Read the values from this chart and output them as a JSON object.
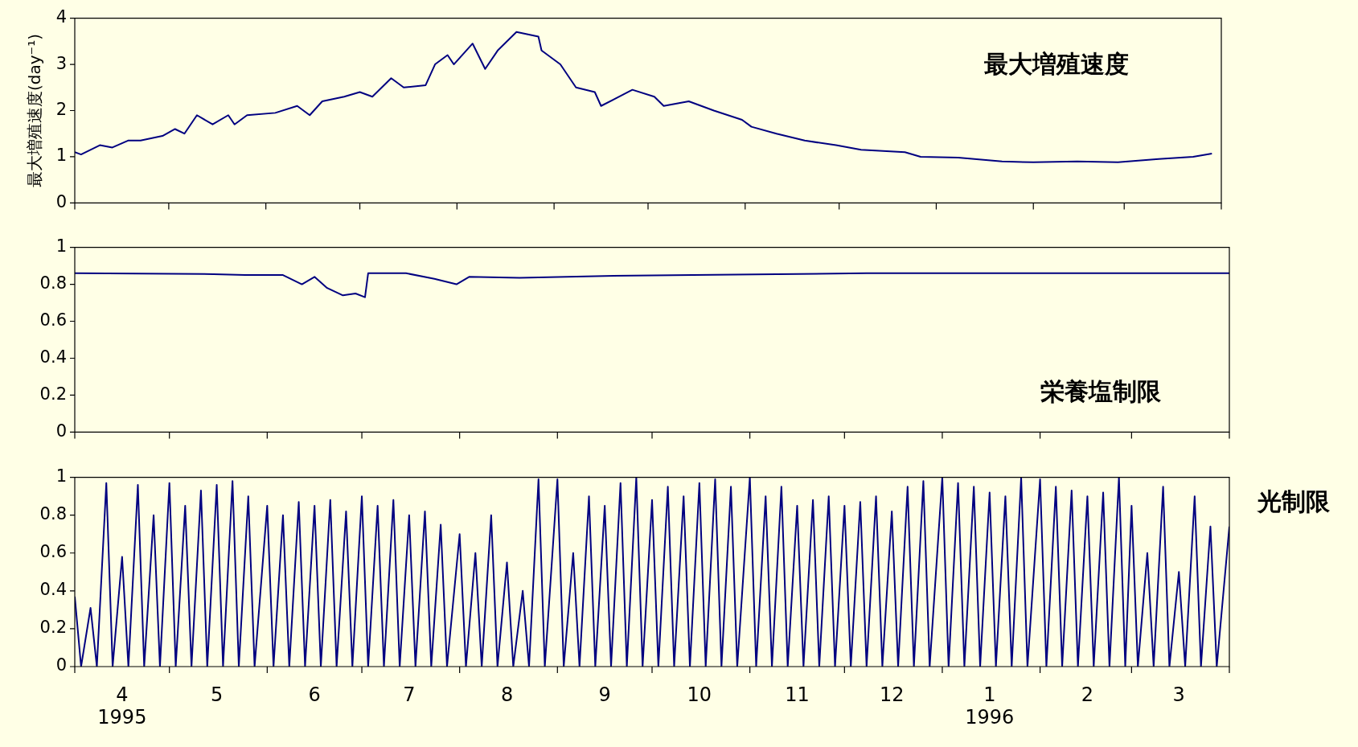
{
  "chart_data": [
    {
      "type": "line",
      "ylabel": "最大増殖速度(day⁻¹)",
      "annotations": [
        "最大増殖速度"
      ],
      "marker": "none",
      "legend": false,
      "tick_labels": "y",
      "xlim": [
        "1995-04-01",
        "1996-04-01"
      ],
      "ylim": [
        0,
        4
      ],
      "yticks": [
        0,
        1,
        2,
        3,
        4
      ],
      "xticks": [
        {
          "value": "1995-04-01",
          "label": null
        },
        {
          "value": "1995-05-01",
          "label": null
        },
        {
          "value": "1995-06-01",
          "label": null
        },
        {
          "value": "1995-07-01",
          "label": null
        },
        {
          "value": "1995-08-01",
          "label": null
        },
        {
          "value": "1995-09-01",
          "label": null
        },
        {
          "value": "1995-10-01",
          "label": null
        },
        {
          "value": "1995-11-01",
          "label": null
        },
        {
          "value": "1995-12-01",
          "label": null
        },
        {
          "value": "1996-01-01",
          "label": null
        },
        {
          "value": "1996-02-01",
          "label": null
        },
        {
          "value": "1996-03-01",
          "label": null
        },
        {
          "value": "1996-04-01",
          "label": null
        }
      ],
      "x": [
        "1995-04-01",
        "1995-04-03",
        "1995-04-09",
        "1995-04-13",
        "1995-04-18",
        "1995-04-22",
        "1995-04-29",
        "1995-05-03",
        "1995-05-06",
        "1995-05-10",
        "1995-05-15",
        "1995-05-20",
        "1995-05-22",
        "1995-05-26",
        "1995-06-04",
        "1995-06-11",
        "1995-06-15",
        "1995-06-19",
        "1995-06-26",
        "1995-07-01",
        "1995-07-05",
        "1995-07-11",
        "1995-07-15",
        "1995-07-22",
        "1995-07-25",
        "1995-07-29",
        "1995-07-31",
        "1995-08-06",
        "1995-08-10",
        "1995-08-14",
        "1995-08-20",
        "1995-08-27",
        "1995-08-28",
        "1995-09-03",
        "1995-09-08",
        "1995-09-14",
        "1995-09-16",
        "1995-09-26",
        "1995-10-03",
        "1995-10-06",
        "1995-10-14",
        "1995-10-22",
        "1995-10-31",
        "1995-11-03",
        "1995-11-11",
        "1995-11-20",
        "1995-11-30",
        "1995-12-08",
        "1995-12-22",
        "1995-12-27",
        "1996-01-08",
        "1996-01-22",
        "1996-02-01",
        "1996-02-15",
        "1996-02-28",
        "1996-03-12",
        "1996-03-23",
        "1996-03-29"
      ],
      "series": [
        {
          "color": "#000080",
          "values": [
            1.1,
            1.05,
            1.25,
            1.2,
            1.35,
            1.35,
            1.45,
            1.6,
            1.5,
            1.9,
            1.7,
            1.9,
            1.7,
            1.9,
            1.95,
            2.1,
            1.9,
            2.2,
            2.3,
            2.4,
            2.3,
            2.7,
            2.5,
            2.55,
            3.0,
            3.2,
            3.0,
            3.45,
            2.9,
            3.3,
            3.7,
            3.6,
            3.3,
            3.0,
            2.5,
            2.4,
            2.1,
            2.45,
            2.3,
            2.1,
            2.2,
            2.0,
            1.8,
            1.65,
            1.5,
            1.35,
            1.25,
            1.15,
            1.1,
            1.0,
            0.98,
            0.9,
            0.88,
            0.9,
            0.88,
            0.95,
            1.0,
            1.07
          ]
        }
      ]
    },
    {
      "type": "line",
      "annotations": [
        "栄養塩制限"
      ],
      "marker": "none",
      "legend": false,
      "tick_labels": "y",
      "xlim": [
        "1995-04-01",
        "1996-04-01"
      ],
      "ylim": [
        0,
        1
      ],
      "yticks": [
        0,
        0.2,
        0.4,
        0.6,
        0.8,
        1
      ],
      "xticks": [
        {
          "value": "1995-04-01",
          "label": null
        },
        {
          "value": "1995-05-01",
          "label": null
        },
        {
          "value": "1995-06-01",
          "label": null
        },
        {
          "value": "1995-07-01",
          "label": null
        },
        {
          "value": "1995-08-01",
          "label": null
        },
        {
          "value": "1995-09-01",
          "label": null
        },
        {
          "value": "1995-10-01",
          "label": null
        },
        {
          "value": "1995-11-01",
          "label": null
        },
        {
          "value": "1995-12-01",
          "label": null
        },
        {
          "value": "1996-01-01",
          "label": null
        },
        {
          "value": "1996-02-01",
          "label": null
        },
        {
          "value": "1996-03-01",
          "label": null
        },
        {
          "value": "1996-04-01",
          "label": null
        }
      ],
      "x": [
        "1995-04-01",
        "1995-05-15",
        "1995-05-25",
        "1995-06-06",
        "1995-06-12",
        "1995-06-16",
        "1995-06-20",
        "1995-06-25",
        "1995-06-29",
        "1995-07-02",
        "1995-07-03",
        "1995-07-15",
        "1995-07-24",
        "1995-07-31",
        "1995-08-04",
        "1995-08-20",
        "1995-09-16",
        "1995-10-14",
        "1995-12-08",
        "1996-04-01"
      ],
      "series": [
        {
          "color": "#000080",
          "values": [
            0.86,
            0.855,
            0.85,
            0.85,
            0.8,
            0.84,
            0.78,
            0.74,
            0.75,
            0.73,
            0.86,
            0.86,
            0.83,
            0.8,
            0.84,
            0.835,
            0.845,
            0.85,
            0.86,
            0.86
          ]
        }
      ]
    },
    {
      "type": "line",
      "annotations": [
        "光制限"
      ],
      "marker": "none",
      "legend": false,
      "xlim": [
        "1995-04-01",
        "1996-04-01"
      ],
      "ylim": [
        0,
        1
      ],
      "yticks": [
        0,
        0.2,
        0.4,
        0.6,
        0.8,
        1
      ],
      "xticks": [
        {
          "value": "1995-04-01",
          "label": null
        },
        {
          "value": "1995-04-16",
          "label": "4\n1995"
        },
        {
          "value": "1995-05-01",
          "label": null
        },
        {
          "value": "1995-05-16",
          "label": "5"
        },
        {
          "value": "1995-06-01",
          "label": null
        },
        {
          "value": "1995-06-16",
          "label": "6"
        },
        {
          "value": "1995-07-01",
          "label": null
        },
        {
          "value": "1995-07-16",
          "label": "7"
        },
        {
          "value": "1995-08-01",
          "label": null
        },
        {
          "value": "1995-08-16",
          "label": "8"
        },
        {
          "value": "1995-09-01",
          "label": null
        },
        {
          "value": "1995-09-16",
          "label": "9"
        },
        {
          "value": "1995-10-01",
          "label": null
        },
        {
          "value": "1995-10-16",
          "label": "10"
        },
        {
          "value": "1995-11-01",
          "label": null
        },
        {
          "value": "1995-11-16",
          "label": "11"
        },
        {
          "value": "1995-12-01",
          "label": null
        },
        {
          "value": "1995-12-16",
          "label": "12"
        },
        {
          "value": "1996-01-01",
          "label": null
        },
        {
          "value": "1996-01-16",
          "label": "1\n1996"
        },
        {
          "value": "1996-02-01",
          "label": null
        },
        {
          "value": "1996-02-16",
          "label": "2"
        },
        {
          "value": "1996-03-01",
          "label": null
        },
        {
          "value": "1996-03-16",
          "label": "3"
        },
        {
          "value": "1996-04-01",
          "label": null
        }
      ],
      "x": [
        "1995-04-01",
        "1995-04-03",
        "1995-04-06",
        "1995-04-08",
        "1995-04-11",
        "1995-04-13",
        "1995-04-16",
        "1995-04-18",
        "1995-04-21",
        "1995-04-23",
        "1995-04-26",
        "1995-04-28",
        "1995-05-01",
        "1995-05-03",
        "1995-05-06",
        "1995-05-08",
        "1995-05-11",
        "1995-05-13",
        "1995-05-16",
        "1995-05-18",
        "1995-05-21",
        "1995-05-23",
        "1995-05-26",
        "1995-05-28",
        "1995-06-01",
        "1995-06-03",
        "1995-06-06",
        "1995-06-08",
        "1995-06-11",
        "1995-06-13",
        "1995-06-16",
        "1995-06-18",
        "1995-06-21",
        "1995-06-23",
        "1995-06-26",
        "1995-06-28",
        "1995-07-01",
        "1995-07-03",
        "1995-07-06",
        "1995-07-08",
        "1995-07-11",
        "1995-07-13",
        "1995-07-16",
        "1995-07-18",
        "1995-07-21",
        "1995-07-23",
        "1995-07-26",
        "1995-07-28",
        "1995-08-01",
        "1995-08-03",
        "1995-08-06",
        "1995-08-08",
        "1995-08-11",
        "1995-08-13",
        "1995-08-16",
        "1995-08-18",
        "1995-08-21",
        "1995-08-23",
        "1995-08-26",
        "1995-08-28",
        "1995-09-01",
        "1995-09-03",
        "1995-09-06",
        "1995-09-08",
        "1995-09-11",
        "1995-09-13",
        "1995-09-16",
        "1995-09-18",
        "1995-09-21",
        "1995-09-23",
        "1995-09-26",
        "1995-09-28",
        "1995-10-01",
        "1995-10-03",
        "1995-10-06",
        "1995-10-08",
        "1995-10-11",
        "1995-10-13",
        "1995-10-16",
        "1995-10-18",
        "1995-10-21",
        "1995-10-23",
        "1995-10-26",
        "1995-10-28",
        "1995-11-01",
        "1995-11-03",
        "1995-11-06",
        "1995-11-08",
        "1995-11-11",
        "1995-11-13",
        "1995-11-16",
        "1995-11-18",
        "1995-11-21",
        "1995-11-23",
        "1995-11-26",
        "1995-11-28",
        "1995-12-01",
        "1995-12-03",
        "1995-12-06",
        "1995-12-08",
        "1995-12-11",
        "1995-12-13",
        "1995-12-16",
        "1995-12-18",
        "1995-12-21",
        "1995-12-23",
        "1995-12-26",
        "1995-12-28",
        "1996-01-01",
        "1996-01-03",
        "1996-01-06",
        "1996-01-08",
        "1996-01-11",
        "1996-01-13",
        "1996-01-16",
        "1996-01-18",
        "1996-01-21",
        "1996-01-23",
        "1996-01-26",
        "1996-01-28",
        "1996-02-01",
        "1996-02-03",
        "1996-02-06",
        "1996-02-08",
        "1996-02-11",
        "1996-02-13",
        "1996-02-16",
        "1996-02-18",
        "1996-02-21",
        "1996-02-23",
        "1996-02-26",
        "1996-02-28",
        "1996-03-01",
        "1996-03-03",
        "1996-03-06",
        "1996-03-08",
        "1996-03-11",
        "1996-03-13",
        "1996-03-16",
        "1996-03-18",
        "1996-03-21",
        "1996-03-23",
        "1996-03-26",
        "1996-03-28",
        "1996-04-01"
      ],
      "series": [
        {
          "color": "#000080",
          "values": [
            0.37,
            0,
            0.31,
            0,
            0.97,
            0,
            0.58,
            0,
            0.96,
            0,
            0.8,
            0,
            0.97,
            0,
            0.85,
            0,
            0.93,
            0,
            0.96,
            0,
            0.98,
            0,
            0.9,
            0,
            0.85,
            0,
            0.8,
            0,
            0.87,
            0,
            0.85,
            0,
            0.88,
            0,
            0.82,
            0,
            0.9,
            0,
            0.85,
            0,
            0.88,
            0,
            0.8,
            0,
            0.82,
            0,
            0.75,
            0,
            0.7,
            0,
            0.6,
            0,
            0.8,
            0,
            0.55,
            0,
            0.4,
            0,
            0.99,
            0,
            0.99,
            0,
            0.6,
            0,
            0.9,
            0,
            0.85,
            0,
            0.97,
            0,
            1.0,
            0,
            0.88,
            0,
            0.95,
            0,
            0.9,
            0,
            0.97,
            0,
            0.99,
            0,
            0.95,
            0,
            1.0,
            0,
            0.9,
            0,
            0.95,
            0,
            0.85,
            0,
            0.88,
            0,
            0.9,
            0,
            0.85,
            0,
            0.87,
            0,
            0.9,
            0,
            0.82,
            0,
            0.95,
            0,
            0.98,
            0,
            1.0,
            0,
            0.97,
            0,
            0.95,
            0,
            0.92,
            0,
            0.9,
            0,
            1.0,
            0,
            0.99,
            0,
            0.95,
            0,
            0.93,
            0,
            0.9,
            0,
            0.92,
            0,
            1.0,
            0,
            0.85,
            0,
            0.6,
            0,
            0.95,
            0,
            0.5,
            0,
            0.9,
            0,
            0.74,
            0,
            0.74
          ]
        }
      ]
    }
  ]
}
